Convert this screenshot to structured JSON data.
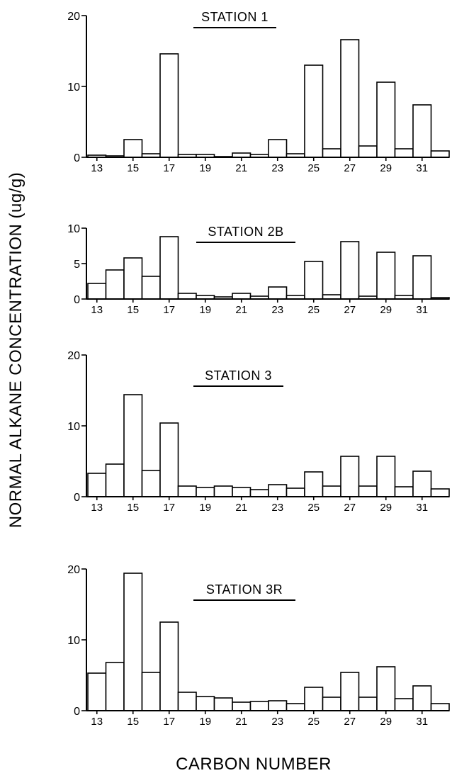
{
  "figure": {
    "ylabel": "NORMAL ALKANE CONCENTRATION  (ug/g)",
    "xlabel": "CARBON NUMBER"
  },
  "chart_data": [
    {
      "type": "bar",
      "title": "STATION 1",
      "categories": [
        13,
        14,
        15,
        16,
        17,
        18,
        19,
        20,
        21,
        22,
        23,
        24,
        25,
        26,
        27,
        28,
        29,
        30,
        31,
        32
      ],
      "x_tick_labels": [
        "13",
        "15",
        "17",
        "19",
        "21",
        "23",
        "25",
        "27",
        "29",
        "31"
      ],
      "values": [
        0.3,
        0.2,
        2.5,
        0.5,
        14.6,
        0.4,
        0.4,
        0.1,
        0.6,
        0.4,
        2.5,
        0.5,
        13.0,
        1.2,
        16.6,
        1.6,
        10.6,
        1.2,
        7.4,
        0.9
      ],
      "ylim": [
        0,
        20
      ],
      "y_ticks": [
        0,
        10,
        20
      ]
    },
    {
      "type": "bar",
      "title": "STATION 2B",
      "categories": [
        13,
        14,
        15,
        16,
        17,
        18,
        19,
        20,
        21,
        22,
        23,
        24,
        25,
        26,
        27,
        28,
        29,
        30,
        31,
        32
      ],
      "x_tick_labels": [
        "13",
        "15",
        "17",
        "19",
        "21",
        "23",
        "25",
        "27",
        "29",
        "31"
      ],
      "values": [
        2.2,
        4.1,
        5.8,
        3.2,
        8.8,
        0.8,
        0.5,
        0.3,
        0.8,
        0.4,
        1.7,
        0.5,
        5.3,
        0.6,
        8.1,
        0.4,
        6.6,
        0.5,
        6.1,
        0.2
      ],
      "ylim": [
        0,
        10
      ],
      "y_ticks": [
        0,
        5,
        10
      ]
    },
    {
      "type": "bar",
      "title": "STATION 3",
      "categories": [
        13,
        14,
        15,
        16,
        17,
        18,
        19,
        20,
        21,
        22,
        23,
        24,
        25,
        26,
        27,
        28,
        29,
        30,
        31,
        32
      ],
      "x_tick_labels": [
        "13",
        "15",
        "17",
        "19",
        "21",
        "23",
        "25",
        "27",
        "29",
        "31"
      ],
      "values": [
        3.3,
        4.6,
        14.4,
        3.7,
        10.4,
        1.5,
        1.3,
        1.5,
        1.3,
        1.0,
        1.7,
        1.2,
        3.5,
        1.5,
        5.7,
        1.5,
        5.7,
        1.4,
        3.6,
        1.1
      ],
      "ylim": [
        0,
        20
      ],
      "y_ticks": [
        0,
        10,
        20
      ]
    },
    {
      "type": "bar",
      "title": "STATION 3R",
      "categories": [
        13,
        14,
        15,
        16,
        17,
        18,
        19,
        20,
        21,
        22,
        23,
        24,
        25,
        26,
        27,
        28,
        29,
        30,
        31,
        32
      ],
      "x_tick_labels": [
        "13",
        "15",
        "17",
        "19",
        "21",
        "23",
        "25",
        "27",
        "29",
        "31"
      ],
      "values": [
        5.3,
        6.8,
        19.4,
        5.4,
        12.5,
        2.6,
        2.0,
        1.8,
        1.2,
        1.3,
        1.4,
        1.0,
        3.3,
        1.9,
        5.4,
        1.9,
        6.2,
        1.7,
        3.5,
        1.0
      ],
      "ylim": [
        0,
        20
      ],
      "y_ticks": [
        0,
        10,
        20
      ]
    }
  ]
}
